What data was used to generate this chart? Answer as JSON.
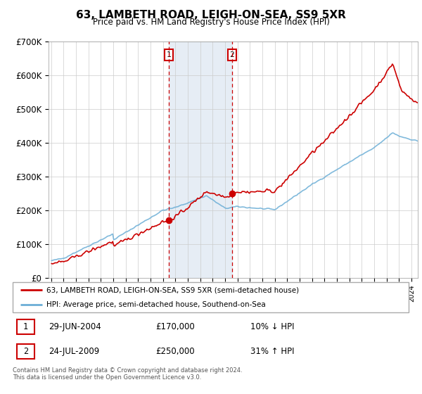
{
  "title": "63, LAMBETH ROAD, LEIGH-ON-SEA, SS9 5XR",
  "subtitle": "Price paid vs. HM Land Registry's House Price Index (HPI)",
  "legend_line1": "63, LAMBETH ROAD, LEIGH-ON-SEA, SS9 5XR (semi-detached house)",
  "legend_line2": "HPI: Average price, semi-detached house, Southend-on-Sea",
  "sale1_date": "29-JUN-2004",
  "sale1_price": "£170,000",
  "sale1_hpi": "10% ↓ HPI",
  "sale2_date": "24-JUL-2009",
  "sale2_price": "£250,000",
  "sale2_hpi": "31% ↑ HPI",
  "footnote": "Contains HM Land Registry data © Crown copyright and database right 2024.\nThis data is licensed under the Open Government Licence v3.0.",
  "hpi_color": "#6baed6",
  "price_color": "#cc0000",
  "shading_color": "#dce6f1",
  "sale1_x": 2004.49,
  "sale1_y": 170000,
  "sale2_x": 2009.56,
  "sale2_y": 250000,
  "ylim": [
    0,
    700000
  ],
  "xlim_start": 1994.8,
  "xlim_end": 2024.5,
  "ytick_labels": [
    "£0",
    "£100K",
    "£200K",
    "£300K",
    "£400K",
    "£500K",
    "£600K",
    "£700K"
  ],
  "ytick_values": [
    0,
    100000,
    200000,
    300000,
    400000,
    500000,
    600000,
    700000
  ]
}
